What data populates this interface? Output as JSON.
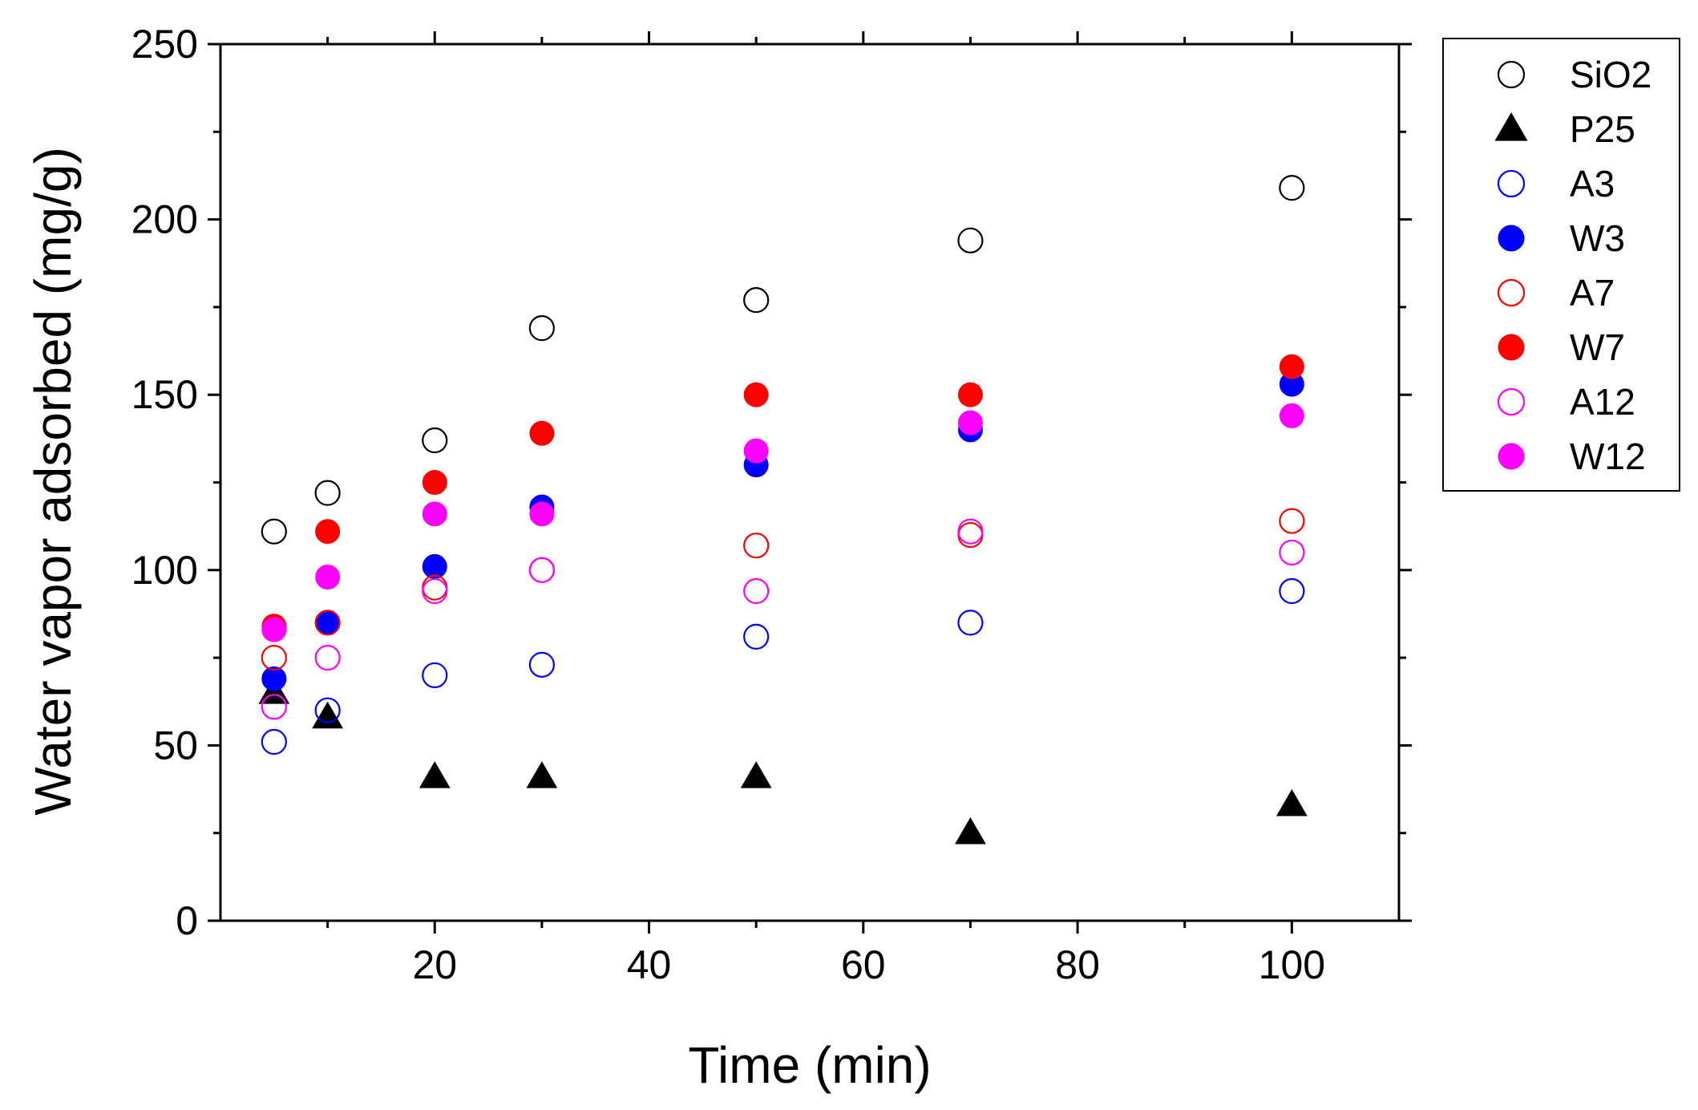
{
  "chart_data": {
    "type": "scatter",
    "title": "",
    "xlabel": "Time (min)",
    "ylabel": "Water vapor adsorbed (mg/g)",
    "xlim": [
      0,
      110
    ],
    "ylim": [
      0,
      250
    ],
    "xticks": [
      20,
      40,
      60,
      80,
      100
    ],
    "yticks": [
      0,
      50,
      100,
      150,
      200,
      250
    ],
    "grid": false,
    "legend_position": "outside-top-right",
    "x": [
      5,
      10,
      20,
      30,
      50,
      70,
      100
    ],
    "series": [
      {
        "name": "SiO2",
        "marker": "circle",
        "filled": false,
        "color": "#000000",
        "values": [
          111,
          122,
          137,
          169,
          177,
          194,
          209
        ]
      },
      {
        "name": "P25",
        "marker": "triangle",
        "filled": true,
        "color": "#000000",
        "values": [
          65,
          58,
          41,
          41,
          41,
          25,
          33
        ]
      },
      {
        "name": "A3",
        "marker": "circle",
        "filled": false,
        "color": "#0000ff",
        "values": [
          51,
          60,
          70,
          73,
          81,
          85,
          94
        ]
      },
      {
        "name": "W3",
        "marker": "circle",
        "filled": true,
        "color": "#0000ff",
        "values": [
          69,
          85,
          101,
          118,
          130,
          140,
          153
        ]
      },
      {
        "name": "A7",
        "marker": "circle",
        "filled": false,
        "color": "#ff0000",
        "values": [
          75,
          85,
          95,
          100,
          107,
          110,
          114
        ]
      },
      {
        "name": "W7",
        "marker": "circle",
        "filled": true,
        "color": "#ff0000",
        "values": [
          84,
          111,
          125,
          139,
          150,
          150,
          158
        ]
      },
      {
        "name": "A12",
        "marker": "circle",
        "filled": false,
        "color": "#ff00ff",
        "values": [
          61,
          75,
          94,
          100,
          94,
          111,
          105
        ]
      },
      {
        "name": "W12",
        "marker": "circle",
        "filled": true,
        "color": "#ff00ff",
        "values": [
          83,
          98,
          116,
          116,
          134,
          142,
          144
        ]
      }
    ]
  }
}
